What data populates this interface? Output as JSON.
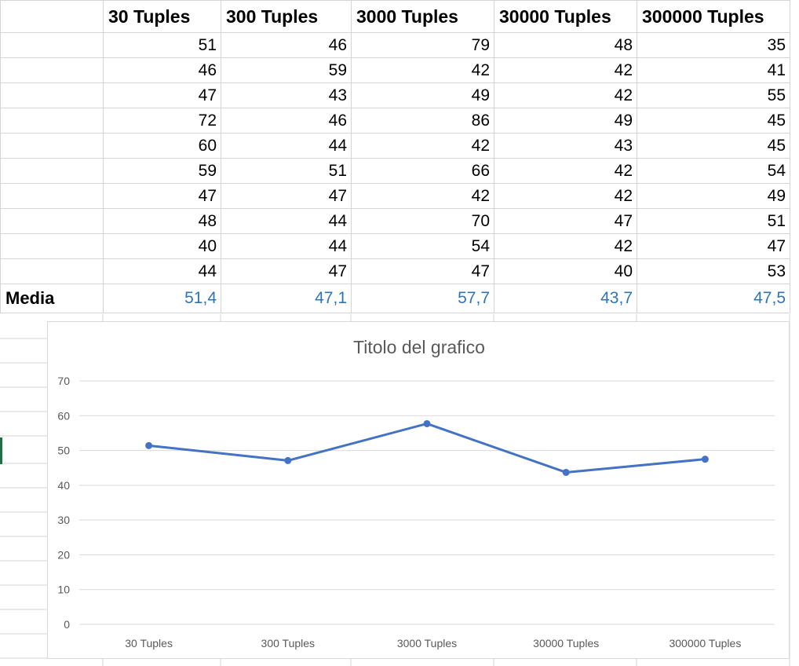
{
  "sheet": {
    "columns": [
      "",
      "30 Tuples",
      "300 Tuples",
      "3000 Tuples",
      "30000 Tuples",
      "300000 Tuples"
    ],
    "rows": [
      [
        51,
        46,
        79,
        48,
        35
      ],
      [
        46,
        59,
        42,
        42,
        41
      ],
      [
        47,
        43,
        49,
        42,
        55
      ],
      [
        72,
        46,
        86,
        49,
        45
      ],
      [
        60,
        44,
        42,
        43,
        45
      ],
      [
        59,
        51,
        66,
        42,
        54
      ],
      [
        47,
        47,
        42,
        42,
        49
      ],
      [
        48,
        44,
        70,
        47,
        51
      ],
      [
        40,
        44,
        54,
        42,
        47
      ],
      [
        44,
        47,
        47,
        40,
        53
      ]
    ],
    "average_label": "Media",
    "averages": [
      "51,4",
      "47,1",
      "57,7",
      "43,7",
      "47,5"
    ]
  },
  "colors": {
    "average_text": "#2f75b5",
    "series_line": "#4472c4",
    "gridline": "#d9d9d9",
    "selection_marker": "#1e7145"
  },
  "chart_data": {
    "type": "line",
    "title": "Titolo del grafico",
    "categories": [
      "30 Tuples",
      "300 Tuples",
      "3000 Tuples",
      "30000 Tuples",
      "300000 Tuples"
    ],
    "series": [
      {
        "values": [
          51.4,
          47.1,
          57.7,
          43.7,
          47.5
        ]
      }
    ],
    "ylim": [
      0,
      70
    ],
    "yticks": [
      0,
      10,
      20,
      30,
      40,
      50,
      60,
      70
    ],
    "grid": true,
    "legend": false,
    "xlabel": "",
    "ylabel": ""
  }
}
